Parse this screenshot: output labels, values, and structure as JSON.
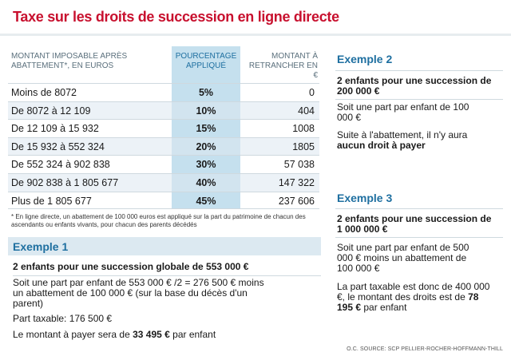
{
  "title": "Taxe sur les droits de succession en ligne directe",
  "table": {
    "headers": {
      "amount": "MONTANT IMPOSABLE APRÈS ABATTEMENT*, EN EUROS",
      "percentage": "POURCENTAGE APPLIQUÉ",
      "subtract": "MONTANT À RETRANCHER EN €"
    },
    "rows": [
      {
        "range": "Moins de 8072",
        "pct": "5%",
        "subtract": "0"
      },
      {
        "range": "De 8072 à 12 109",
        "pct": "10%",
        "subtract": "404"
      },
      {
        "range": "De 12 109 à 15 932",
        "pct": "15%",
        "subtract": "1008"
      },
      {
        "range": "De 15 932 à 552 324",
        "pct": "20%",
        "subtract": "1805"
      },
      {
        "range": "De 552 324 à 902 838",
        "pct": "30%",
        "subtract": "57 038"
      },
      {
        "range": "De 902 838 à 1 805 677",
        "pct": "40%",
        "subtract": "147 322"
      },
      {
        "range": "Plus de 1 805 677",
        "pct": "45%",
        "subtract": "237 606"
      }
    ]
  },
  "footnote": "* En ligne directe, un abattement de 100 000 euros est appliqué sur la part du patrimoine de chacun des ascendants ou enfants vivants, pour chacun des parents décédés",
  "example1": {
    "title": "Exemple 1",
    "heading": "2 enfants pour une succession globale de 553 000 €",
    "line1": "Soit une part par enfant de 553 000 € /2 = 276 500 € moins un abattement de 100 000 € (sur la base du décès d'un parent)",
    "line2": "Part taxable: 176 500 €",
    "line3_prefix": "Le montant à payer sera de ",
    "line3_amount": "33 495 €",
    "line3_suffix": " par enfant"
  },
  "example2": {
    "title": "Exemple 2",
    "heading": "2 enfants pour une succession de 200 000 €",
    "line1": "Soit une part par enfant de 100 000 €",
    "line2_prefix": "Suite à l'abattement, il n'y aura ",
    "line2_bold": "aucun droit à payer"
  },
  "example3": {
    "title": "Exemple 3",
    "heading": "2 enfants pour une succession de 1 000 000 €",
    "line1": "Soit une part par enfant de 500 000 € moins un abattement de 100 000 €",
    "line2_prefix": "La part taxable est donc de 400 000 €, le montant des droits est de ",
    "line2_amount": "78 195 €",
    "line2_suffix": " par enfant"
  },
  "credit": "O.C. SOURCE: SCP PELLIER-ROCHER-HOFFMANN-THILL",
  "colors": {
    "title": "#c8102e",
    "accent": "#1e6fa0",
    "highlight": "#c5e0ee"
  }
}
